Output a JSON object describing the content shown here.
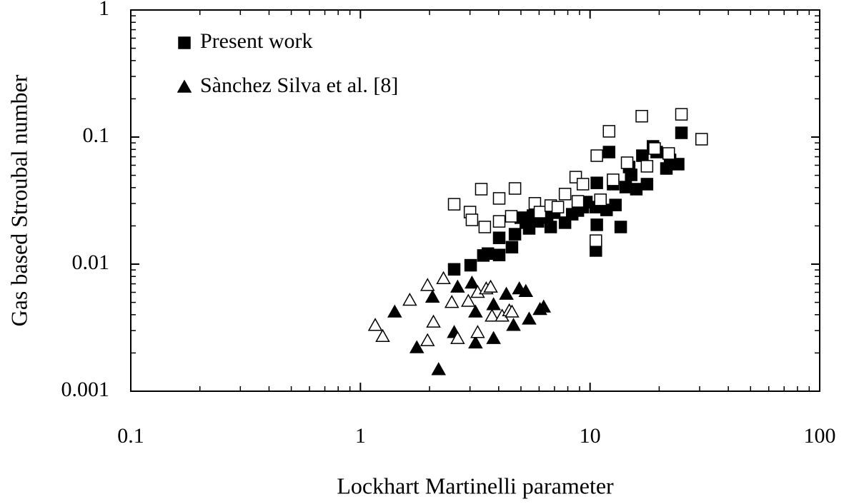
{
  "chart_data": {
    "type": "scatter",
    "x_label": "Lockhart Martinelli parameter",
    "y_label": "Gas based Stroubal number",
    "xlim": [
      0.1,
      100
    ],
    "ylim": [
      0.001,
      1
    ],
    "xticks": [
      0.1,
      1,
      10,
      100
    ],
    "yticks": [
      0.001,
      0.01,
      0.1,
      1
    ],
    "xlog": true,
    "ylog": true,
    "minor_ticks": true,
    "legend": "upper left",
    "series": [
      {
        "name": "Present work",
        "marker": "square",
        "filled": true,
        "color": "#000000",
        "x": [
          2.56,
          3.02,
          3.43,
          3.59,
          4.02,
          4.02,
          4.57,
          4.71,
          4.99,
          5.25,
          5.43,
          5.64,
          5.93,
          6.5,
          6.74,
          6.98,
          7.78,
          8.36,
          8.85,
          9.31,
          9.64,
          10.6,
          10.7,
          10.7,
          10.6,
          11.8,
          12.1,
          12.6,
          12.9,
          13.6,
          14.3,
          14.8,
          15.1,
          15.9,
          16.9,
          17.7,
          18.8,
          19.5,
          21.5,
          24.2,
          25.0,
          22.3,
          9.31
        ],
        "values": [
          0.0091,
          0.0098,
          0.0117,
          0.0121,
          0.0118,
          0.0161,
          0.0136,
          0.0172,
          0.0232,
          0.0212,
          0.0191,
          0.0241,
          0.0217,
          0.0232,
          0.0196,
          0.0254,
          0.0212,
          0.0247,
          0.0264,
          0.0281,
          0.0308,
          0.0281,
          0.0204,
          0.0436,
          0.0128,
          0.0267,
          0.0762,
          0.0426,
          0.0292,
          0.0196,
          0.0404,
          0.0581,
          0.0504,
          0.0389,
          0.0714,
          0.0426,
          0.0845,
          0.0762,
          0.0566,
          0.0612,
          0.108,
          0.0661,
          0.0301
        ]
      },
      {
        "marker": "square",
        "filled": false,
        "color": "#000000",
        "x": [
          2.56,
          3.0,
          3.06,
          3.36,
          3.48,
          4.02,
          4.02,
          4.71,
          4.54,
          5.75,
          6.05,
          6.74,
          7.78,
          8.66,
          8.85,
          9.31,
          10.7,
          10.6,
          12.1,
          12.6,
          14.5,
          16.8,
          17.7,
          19.1,
          22.0,
          25.0,
          30.6,
          7.24,
          11.1
        ],
        "values": [
          0.0296,
          0.0257,
          0.0223,
          0.0389,
          0.0196,
          0.0329,
          0.0217,
          0.0394,
          0.0238,
          0.0301,
          0.0257,
          0.0289,
          0.0356,
          0.0484,
          0.0312,
          0.0426,
          0.0714,
          0.0153,
          0.111,
          0.0461,
          0.0628,
          0.146,
          0.0589,
          0.0813,
          0.0743,
          0.151,
          0.0962,
          0.0281,
          0.0321
        ]
      },
      {
        "name": "Sànchez Silva et al. [8]",
        "marker": "triangle",
        "filled": true,
        "color": "#000000",
        "x": [
          1.41,
          1.76,
          2.06,
          2.19,
          2.56,
          2.65,
          3.06,
          3.17,
          3.17,
          3.8,
          3.8,
          4.32,
          4.64,
          4.92,
          5.25,
          5.43,
          6.05,
          6.28
        ],
        "values": [
          0.0042,
          0.0022,
          0.0055,
          0.00148,
          0.0029,
          0.0066,
          0.0071,
          0.0024,
          0.0042,
          0.0026,
          0.0048,
          0.0058,
          0.0033,
          0.0064,
          0.0061,
          0.0037,
          0.0044,
          0.0046
        ]
      },
      {
        "marker": "triangle",
        "filled": false,
        "color": "#000000",
        "x": [
          1.16,
          1.25,
          1.64,
          1.96,
          1.96,
          2.08,
          2.3,
          2.5,
          2.65,
          2.95,
          3.24,
          3.24,
          3.53,
          3.69,
          3.74,
          4.14,
          4.45,
          4.57
        ],
        "values": [
          0.0033,
          0.0027,
          0.0052,
          0.0068,
          0.0025,
          0.0035,
          0.0077,
          0.005,
          0.0026,
          0.0051,
          0.006,
          0.0029,
          0.0064,
          0.0066,
          0.0039,
          0.0039,
          0.0043,
          0.0042
        ]
      }
    ]
  }
}
